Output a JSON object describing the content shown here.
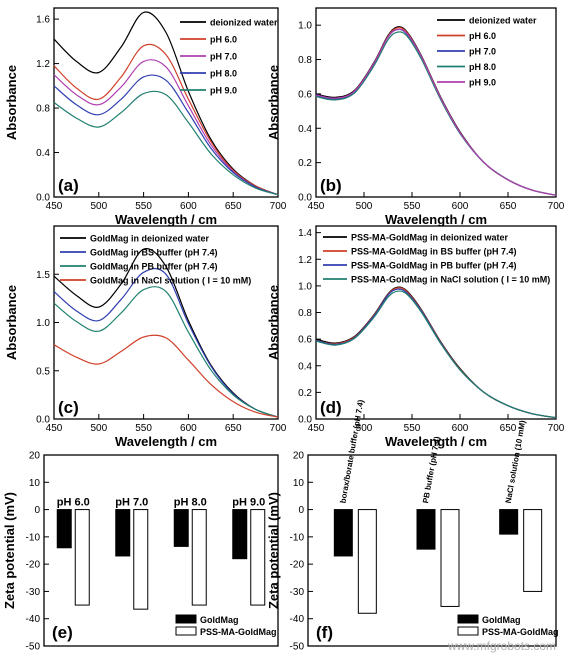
{
  "watermark": "www.mfgrobots.com",
  "chart_data": [
    {
      "panel": "(a)",
      "type": "line",
      "xlabel": "Wavelength / cm",
      "ylabel": "Absorbance",
      "xlim": [
        450,
        700
      ],
      "ylim": [
        0,
        1.7
      ],
      "xticks": [
        450,
        500,
        550,
        600,
        650,
        700
      ],
      "yticks": [
        0.0,
        0.4,
        0.8,
        1.2,
        1.6
      ],
      "ytick_labels": [
        "0.0",
        "0.4",
        "0.8",
        "1.2",
        "1.6"
      ],
      "legend_position": "top-right",
      "series": [
        {
          "name": "deionized water",
          "color": "#000000",
          "x": [
            450,
            475,
            500,
            525,
            550,
            575,
            600,
            625,
            650,
            675,
            700
          ],
          "y": [
            1.42,
            1.22,
            1.12,
            1.35,
            1.66,
            1.48,
            0.95,
            0.52,
            0.25,
            0.1,
            0.02
          ]
        },
        {
          "name": "pH 6.0",
          "color": "#d0402a",
          "x": [
            450,
            475,
            500,
            525,
            550,
            575,
            600,
            625,
            650,
            675,
            700
          ],
          "y": [
            1.18,
            0.98,
            0.88,
            1.08,
            1.36,
            1.28,
            0.88,
            0.5,
            0.24,
            0.1,
            0.02
          ]
        },
        {
          "name": "pH 7.0",
          "color": "#b040b0",
          "x": [
            450,
            475,
            500,
            525,
            550,
            575,
            600,
            625,
            650,
            675,
            700
          ],
          "y": [
            1.1,
            0.92,
            0.83,
            0.99,
            1.22,
            1.17,
            0.82,
            0.47,
            0.23,
            0.09,
            0.02
          ]
        },
        {
          "name": "pH 8.0",
          "color": "#3040b0",
          "x": [
            450,
            475,
            500,
            525,
            550,
            575,
            600,
            625,
            650,
            675,
            700
          ],
          "y": [
            1.0,
            0.83,
            0.74,
            0.88,
            1.08,
            1.05,
            0.76,
            0.44,
            0.22,
            0.09,
            0.02
          ]
        },
        {
          "name": "pH 9.0",
          "color": "#208070",
          "x": [
            450,
            475,
            500,
            525,
            550,
            575,
            600,
            625,
            650,
            675,
            700
          ],
          "y": [
            0.85,
            0.71,
            0.63,
            0.76,
            0.93,
            0.92,
            0.67,
            0.39,
            0.2,
            0.08,
            0.02
          ]
        }
      ]
    },
    {
      "panel": "(b)",
      "type": "line",
      "xlabel": "Wavelength / cm",
      "ylabel": "Absorbance",
      "xlim": [
        450,
        700
      ],
      "ylim": [
        0,
        1.1
      ],
      "xticks": [
        450,
        500,
        550,
        600,
        650,
        700
      ],
      "yticks": [
        0.0,
        0.2,
        0.4,
        0.6,
        0.8,
        1.0
      ],
      "ytick_labels": [
        "0.0",
        "0.2",
        "0.4",
        "0.6",
        "0.8",
        "1.0"
      ],
      "legend_position": "top-right",
      "series": [
        {
          "name": "deionized water",
          "color": "#000000",
          "x": [
            450,
            470,
            490,
            510,
            525,
            535,
            545,
            560,
            580,
            600,
            625,
            650,
            675,
            700
          ],
          "y": [
            0.6,
            0.58,
            0.62,
            0.78,
            0.94,
            0.99,
            0.96,
            0.82,
            0.58,
            0.38,
            0.2,
            0.1,
            0.04,
            0.01
          ]
        },
        {
          "name": "pH 6.0",
          "color": "#d0402a",
          "x": [
            450,
            470,
            490,
            510,
            525,
            535,
            545,
            560,
            580,
            600,
            625,
            650,
            675,
            700
          ],
          "y": [
            0.59,
            0.575,
            0.615,
            0.775,
            0.935,
            0.985,
            0.955,
            0.815,
            0.575,
            0.375,
            0.2,
            0.1,
            0.04,
            0.01
          ]
        },
        {
          "name": "pH 7.0",
          "color": "#3040b0",
          "x": [
            450,
            470,
            490,
            510,
            525,
            535,
            545,
            560,
            580,
            600,
            625,
            650,
            675,
            700
          ],
          "y": [
            0.59,
            0.57,
            0.61,
            0.77,
            0.93,
            0.975,
            0.945,
            0.81,
            0.57,
            0.37,
            0.2,
            0.1,
            0.04,
            0.01
          ]
        },
        {
          "name": "pH 8.0",
          "color": "#208070",
          "x": [
            450,
            470,
            490,
            510,
            525,
            535,
            545,
            560,
            580,
            600,
            625,
            650,
            675,
            700
          ],
          "y": [
            0.585,
            0.565,
            0.605,
            0.76,
            0.915,
            0.96,
            0.935,
            0.8,
            0.565,
            0.37,
            0.2,
            0.1,
            0.04,
            0.01
          ]
        },
        {
          "name": "pH 9.0",
          "color": "#b040b0",
          "x": [
            450,
            470,
            490,
            510,
            525,
            535,
            545,
            560,
            580,
            600,
            625,
            650,
            675,
            700
          ],
          "y": [
            0.595,
            0.575,
            0.615,
            0.775,
            0.93,
            0.975,
            0.95,
            0.815,
            0.575,
            0.375,
            0.2,
            0.1,
            0.04,
            0.01
          ]
        }
      ]
    },
    {
      "panel": "(c)",
      "type": "line",
      "xlabel": "Wavelength / cm",
      "ylabel": "Absorbance",
      "xlim": [
        450,
        700
      ],
      "ylim": [
        0,
        2.0
      ],
      "xticks": [
        450,
        500,
        550,
        600,
        650,
        700
      ],
      "yticks": [
        0.0,
        0.5,
        1.0,
        1.5
      ],
      "ytick_labels": [
        "0.0",
        "0.5",
        "1.0",
        "1.5"
      ],
      "legend_position": "top-left",
      "series": [
        {
          "name": "GoldMag in deionized water",
          "color": "#000000",
          "x": [
            450,
            475,
            500,
            525,
            550,
            575,
            600,
            625,
            650,
            675,
            700
          ],
          "y": [
            1.48,
            1.28,
            1.16,
            1.4,
            1.76,
            1.58,
            1.02,
            0.56,
            0.27,
            0.1,
            0.02
          ]
        },
        {
          "name": "GoldMag in BS buffer (pH 7.4)",
          "color": "#3040b0",
          "x": [
            450,
            475,
            500,
            525,
            550,
            575,
            600,
            625,
            650,
            675,
            700
          ],
          "y": [
            1.32,
            1.12,
            1.02,
            1.24,
            1.52,
            1.5,
            0.99,
            0.55,
            0.26,
            0.1,
            0.02
          ]
        },
        {
          "name": "GoldMag in PB buffer (pH 7.4)",
          "color": "#208070",
          "x": [
            450,
            475,
            500,
            525,
            550,
            575,
            600,
            625,
            650,
            675,
            700
          ],
          "y": [
            1.2,
            1.01,
            0.91,
            1.1,
            1.34,
            1.32,
            0.9,
            0.51,
            0.25,
            0.1,
            0.02
          ]
        },
        {
          "name": "GoldMag in NaCl solution ( I = 10 mM)",
          "color": "#d0402a",
          "x": [
            450,
            475,
            500,
            525,
            550,
            575,
            600,
            625,
            650,
            675,
            700
          ],
          "y": [
            0.77,
            0.64,
            0.57,
            0.7,
            0.85,
            0.84,
            0.61,
            0.36,
            0.18,
            0.07,
            0.02
          ]
        }
      ]
    },
    {
      "panel": "(d)",
      "type": "line",
      "xlabel": "Wavelength / cm",
      "ylabel": "Absorbance",
      "xlim": [
        450,
        700
      ],
      "ylim": [
        0,
        1.45
      ],
      "xticks": [
        450,
        500,
        550,
        600,
        650,
        700
      ],
      "yticks": [
        0.0,
        0.2,
        0.4,
        0.6,
        0.8,
        1.0,
        1.2,
        1.4
      ],
      "ytick_labels": [
        "0.0",
        "0.2",
        "0.4",
        "0.6",
        "0.8",
        "1.0",
        "1.2",
        "1.4"
      ],
      "legend_position": "top-right",
      "series": [
        {
          "name": "PSS-MA-GoldMag in deionized water",
          "color": "#000000",
          "x": [
            450,
            470,
            490,
            510,
            525,
            535,
            545,
            560,
            580,
            600,
            625,
            650,
            675,
            700
          ],
          "y": [
            0.6,
            0.57,
            0.62,
            0.78,
            0.94,
            0.99,
            0.96,
            0.82,
            0.58,
            0.38,
            0.2,
            0.1,
            0.04,
            0.01
          ]
        },
        {
          "name": "PSS-MA-GoldMag in BS buffer (pH 7.4)",
          "color": "#d0402a",
          "x": [
            450,
            470,
            490,
            510,
            525,
            535,
            545,
            560,
            580,
            600,
            625,
            650,
            675,
            700
          ],
          "y": [
            0.59,
            0.565,
            0.615,
            0.775,
            0.935,
            0.985,
            0.955,
            0.815,
            0.575,
            0.375,
            0.2,
            0.1,
            0.04,
            0.01
          ]
        },
        {
          "name": "PSS-MA-GoldMag in PB buffer (pH 7.4)",
          "color": "#3040b0",
          "x": [
            450,
            470,
            490,
            510,
            525,
            535,
            545,
            560,
            580,
            600,
            625,
            650,
            675,
            700
          ],
          "y": [
            0.59,
            0.56,
            0.61,
            0.77,
            0.93,
            0.975,
            0.945,
            0.81,
            0.57,
            0.37,
            0.2,
            0.1,
            0.04,
            0.01
          ]
        },
        {
          "name": "PSS-MA-GoldMag in NaCl solution ( I = 10 mM)",
          "color": "#208070",
          "x": [
            450,
            470,
            490,
            510,
            525,
            535,
            545,
            560,
            580,
            600,
            625,
            650,
            675,
            700
          ],
          "y": [
            0.585,
            0.555,
            0.605,
            0.76,
            0.915,
            0.96,
            0.935,
            0.8,
            0.565,
            0.37,
            0.2,
            0.1,
            0.04,
            0.01
          ]
        }
      ]
    },
    {
      "panel": "(e)",
      "type": "bar",
      "ylabel": "Zeta potential (mV)",
      "ylim": [
        -50,
        20
      ],
      "yticks": [
        20,
        10,
        0,
        -10,
        -20,
        -30,
        -40,
        -50
      ],
      "categories": [
        "pH 6.0",
        "pH 7.0",
        "pH 8.0",
        "pH 9.0"
      ],
      "legend_position": "bottom-right",
      "series": [
        {
          "name": "GoldMag",
          "color": "#000000",
          "values": [
            -14,
            -17,
            -13.5,
            -18
          ]
        },
        {
          "name": "PSS-MA-GoldMag",
          "color": "#ffffff",
          "values": [
            -35,
            -36.5,
            -35,
            -35
          ]
        }
      ]
    },
    {
      "panel": "(f)",
      "type": "bar",
      "ylabel": "Zeta potential (mV)",
      "ylim": [
        -50,
        20
      ],
      "yticks": [
        20,
        10,
        0,
        -10,
        -20,
        -30,
        -40,
        -50
      ],
      "categories": [
        "borax/borate buffer (pH 7.4)",
        "PB buffer (pH 7.4)",
        "NaCl solution (10 mM)"
      ],
      "legend_position": "bottom-right",
      "series": [
        {
          "name": "GoldMag",
          "color": "#000000",
          "values": [
            -17,
            -14.5,
            -9
          ]
        },
        {
          "name": "PSS-MA-GoldMag",
          "color": "#ffffff",
          "values": [
            -38,
            -35.5,
            -30
          ]
        }
      ]
    }
  ]
}
